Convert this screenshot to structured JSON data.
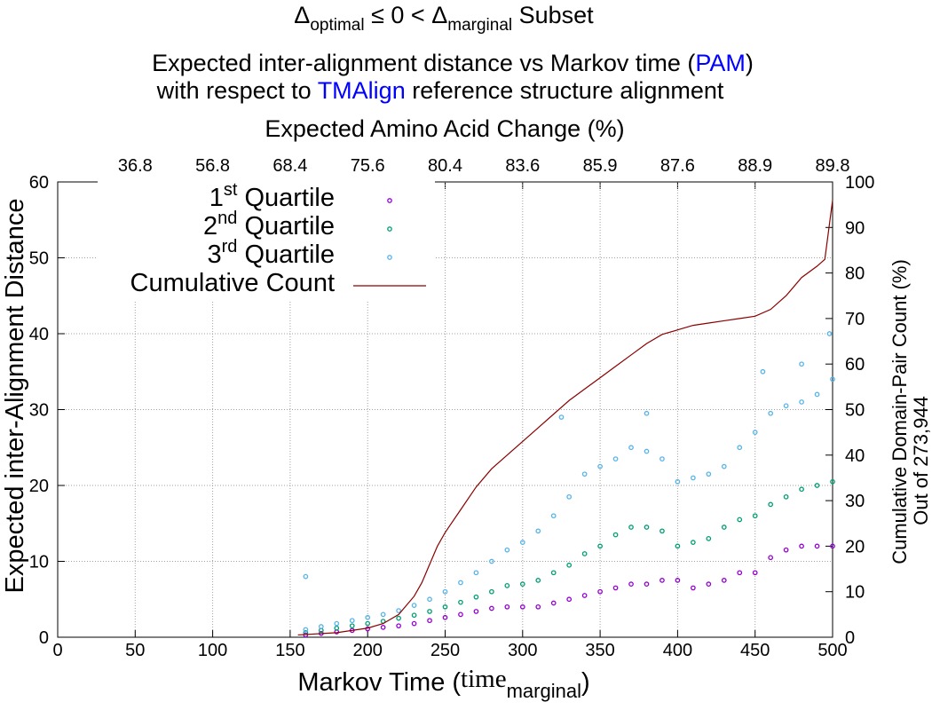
{
  "chart_data": {
    "type": "scatter",
    "title": {
      "delta": "Δ",
      "sub_optimal": "optimal",
      "mid": " ≤ 0 < ",
      "sub_marginal": "marginal",
      "suffix": " Subset"
    },
    "subtitle1": {
      "prefix": "Expected inter-alignment distance vs Markov time (",
      "highlight": "PAM",
      "suffix": ")"
    },
    "subtitle2": {
      "prefix": "with respect to ",
      "highlight": "TMAlign",
      "suffix": " reference structure alignment"
    },
    "accent_color": "#0000ff",
    "top_axis": {
      "label": "Expected Amino Acid Change (%)",
      "ticks": [
        "36.8",
        "56.8",
        "68.4",
        "75.6",
        "80.4",
        "83.6",
        "85.9",
        "87.6",
        "88.9",
        "89.8"
      ],
      "tick_positions": [
        50,
        100,
        150,
        200,
        250,
        300,
        350,
        400,
        450,
        500
      ]
    },
    "xlabel": {
      "main": "Markov Time (",
      "serif": "time",
      "sub": "marginal",
      "close": ")"
    },
    "ylabel": "Expected inter-Alignment Distance",
    "y2label_line1": "Cumulative Domain-Pair Count (%)",
    "y2label_line2": "Out of 273,944",
    "xlim": [
      0,
      500
    ],
    "ylim": [
      0,
      60
    ],
    "y2lim": [
      0,
      100
    ],
    "xticks": [
      0,
      50,
      100,
      150,
      200,
      250,
      300,
      350,
      400,
      450,
      500
    ],
    "yticks": [
      0,
      10,
      20,
      30,
      40,
      50,
      60
    ],
    "y2ticks": [
      0,
      10,
      20,
      30,
      40,
      50,
      60,
      70,
      80,
      90,
      100
    ],
    "grid": true,
    "legend": {
      "position": "top-left",
      "items": [
        {
          "sup_num": "1",
          "sup": "st",
          "label": "Quartile",
          "color": "#9400d3",
          "marker": "circle"
        },
        {
          "sup_num": "2",
          "sup": "nd",
          "label": "Quartile",
          "color": "#009e73",
          "marker": "circle"
        },
        {
          "sup_num": "3",
          "sup": "rd",
          "label": "Quartile",
          "color": "#56b4e9",
          "marker": "circle"
        },
        {
          "sup_num": "",
          "sup": "",
          "label": "Cumulative Count",
          "color": "#8b0000",
          "marker": "line"
        }
      ]
    },
    "series": [
      {
        "name": "1st Quartile",
        "color": "#9400d3",
        "x": [
          160,
          170,
          180,
          190,
          200,
          210,
          220,
          230,
          240,
          250,
          260,
          270,
          280,
          290,
          300,
          310,
          320,
          330,
          340,
          350,
          360,
          370,
          380,
          390,
          400,
          410,
          420,
          430,
          440,
          450,
          460,
          470,
          480,
          490,
          500
        ],
        "y": [
          0.3,
          0.5,
          0.7,
          0.9,
          1.1,
          1.3,
          1.5,
          1.8,
          2.2,
          2.6,
          3.0,
          3.4,
          3.8,
          4.0,
          4.0,
          4.0,
          4.5,
          5.0,
          5.5,
          6.0,
          6.5,
          7.0,
          7.0,
          7.5,
          7.5,
          6.5,
          7.0,
          7.5,
          8.5,
          8.5,
          10.5,
          11.5,
          12.0,
          12.0,
          12.0
        ]
      },
      {
        "name": "2nd Quartile",
        "color": "#009e73",
        "x": [
          160,
          170,
          180,
          190,
          200,
          210,
          220,
          230,
          240,
          250,
          260,
          270,
          280,
          290,
          300,
          310,
          320,
          330,
          340,
          350,
          360,
          370,
          380,
          390,
          400,
          410,
          420,
          430,
          440,
          450,
          460,
          470,
          480,
          490,
          500
        ],
        "y": [
          0.6,
          0.9,
          1.2,
          1.5,
          1.8,
          2.1,
          2.5,
          2.9,
          3.4,
          4.0,
          4.6,
          5.3,
          6.0,
          6.8,
          7.0,
          7.5,
          8.5,
          9.5,
          11.0,
          12.0,
          13.5,
          14.5,
          14.5,
          14.0,
          12.0,
          12.5,
          13.0,
          14.5,
          15.5,
          16.0,
          17.5,
          18.5,
          19.5,
          20.0,
          20.5
        ]
      },
      {
        "name": "3rd Quartile",
        "color": "#56b4e9",
        "x": [
          160,
          170,
          180,
          190,
          200,
          210,
          220,
          230,
          240,
          250,
          260,
          270,
          280,
          290,
          300,
          310,
          320,
          330,
          340,
          350,
          360,
          370,
          380,
          390,
          400,
          410,
          420,
          430,
          440,
          450,
          460,
          470,
          480,
          490,
          500
        ],
        "y": [
          1.0,
          1.4,
          1.8,
          2.2,
          2.6,
          3.0,
          3.5,
          4.2,
          5.0,
          6.0,
          7.2,
          8.5,
          10.0,
          11.5,
          12.5,
          14.0,
          16.0,
          18.5,
          21.5,
          22.5,
          23.5,
          25.0,
          24.5,
          23.5,
          20.5,
          21.0,
          21.5,
          22.5,
          25.0,
          27.0,
          29.5,
          30.5,
          31.0,
          32.0,
          34.0
        ]
      }
    ],
    "outliers_3rd": [
      {
        "x": 160,
        "y": 8.0
      },
      {
        "x": 325,
        "y": 29.0
      },
      {
        "x": 380,
        "y": 29.5
      },
      {
        "x": 455,
        "y": 35.0
      },
      {
        "x": 480,
        "y": 36.0
      },
      {
        "x": 498,
        "y": 40.0
      }
    ],
    "cumulative": {
      "name": "Cumulative Count",
      "color": "#8b0000",
      "x": [
        155,
        180,
        200,
        210,
        220,
        225,
        230,
        235,
        240,
        245,
        250,
        260,
        270,
        280,
        290,
        300,
        310,
        320,
        330,
        340,
        350,
        360,
        370,
        380,
        390,
        400,
        410,
        420,
        430,
        440,
        450,
        460,
        470,
        480,
        490,
        495,
        500
      ],
      "y": [
        0.5,
        1.0,
        2.0,
        3.0,
        5.0,
        7.0,
        9.0,
        12.0,
        16.0,
        20.0,
        23.0,
        28.0,
        33.0,
        37.0,
        40.0,
        43.0,
        46.0,
        49.0,
        52.0,
        54.5,
        57.0,
        59.5,
        62.0,
        64.5,
        66.5,
        67.5,
        68.5,
        69.0,
        69.5,
        70.0,
        70.5,
        72.0,
        75.0,
        79.0,
        81.5,
        83.0,
        96.0
      ]
    }
  }
}
